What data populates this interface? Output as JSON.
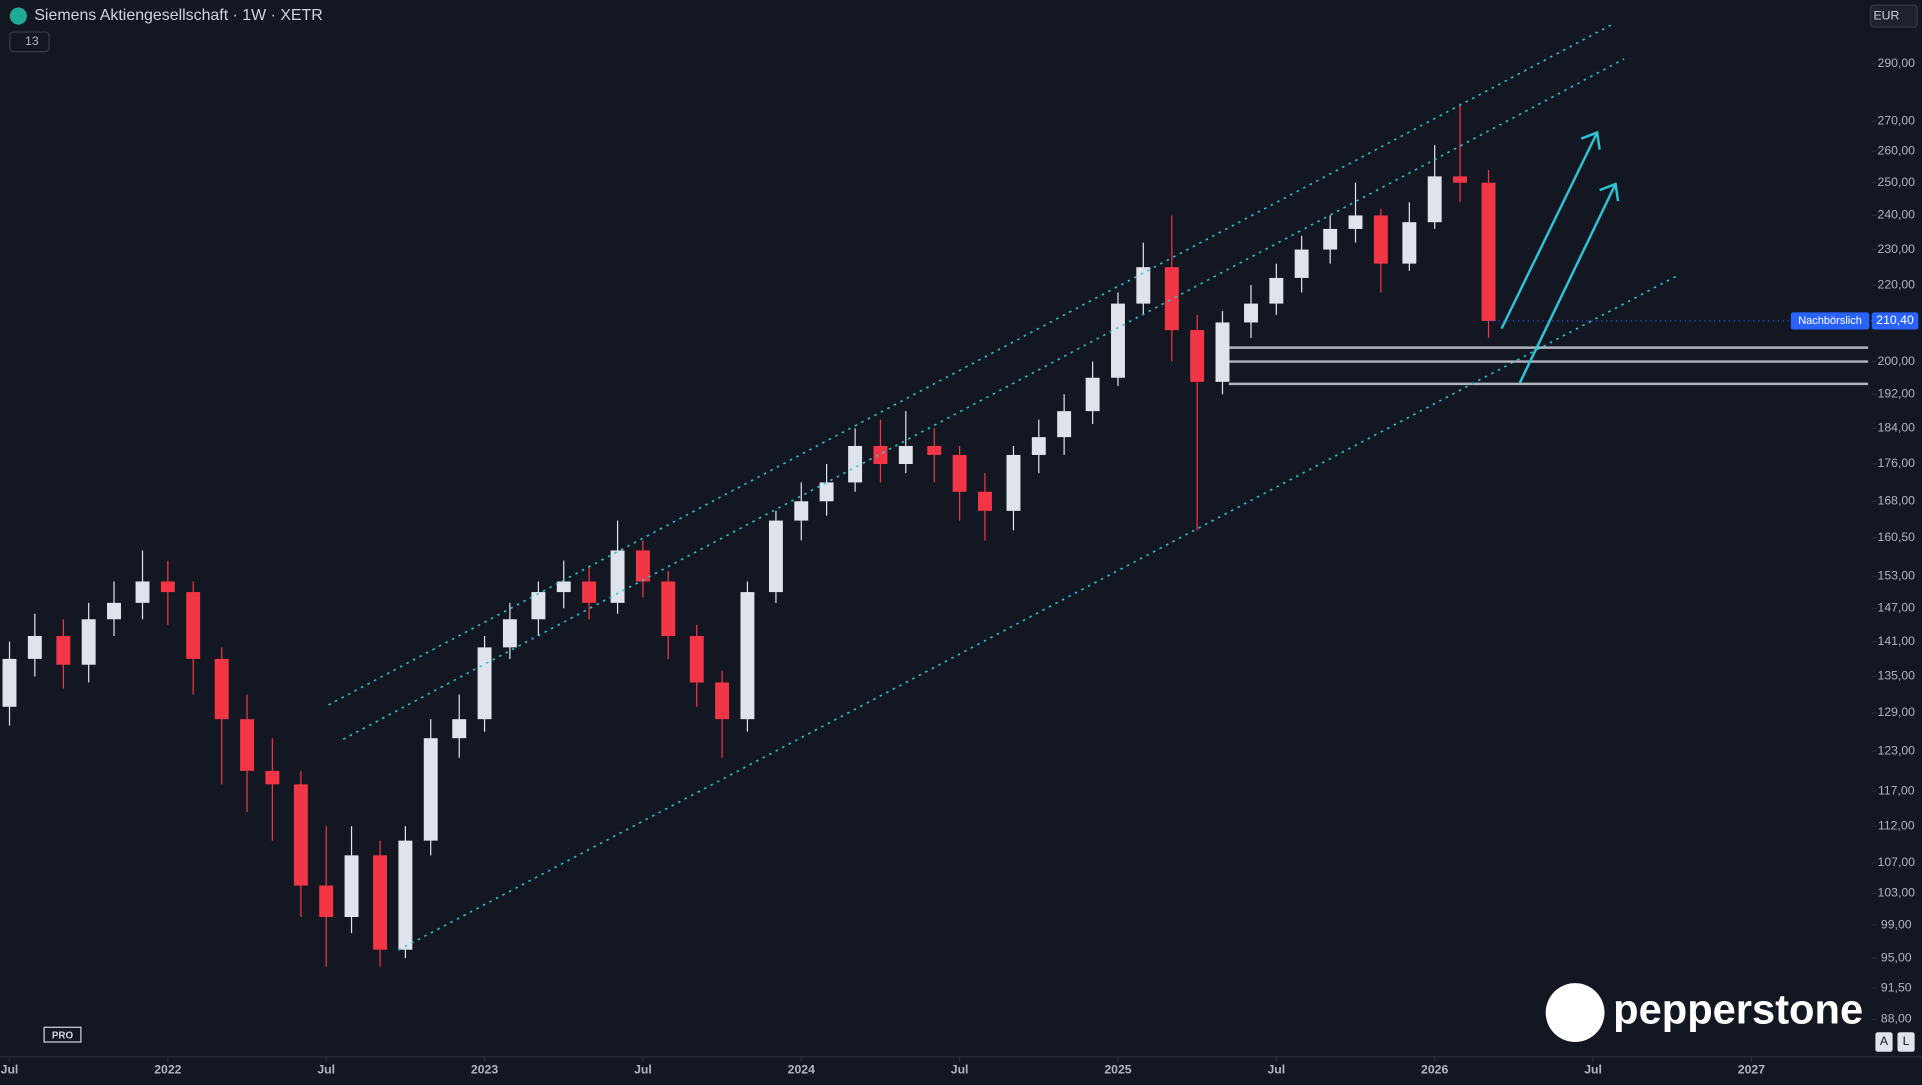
{
  "chart_data": {
    "type": "candlestick",
    "title": "Siemens Aktiengesellschaft · 1W · XETR",
    "indicator_count": "13",
    "currency": "EUR",
    "brand": "pepperstone",
    "badge": "PRO",
    "scale_buttons": [
      "A",
      "L"
    ],
    "log_scale": true,
    "up_color": "#e0e3eb",
    "down_color": "#f23645",
    "level_color": "#b2b5be",
    "xlim": [
      2021.47,
      2027.38
    ],
    "ylim": [
      84,
      314
    ],
    "xticks": [
      {
        "value": 2021.5,
        "label": "Jul"
      },
      2022,
      {
        "value": 2022.5,
        "label": "Jul"
      },
      2023,
      {
        "value": 2023.5,
        "label": "Jul"
      },
      2024,
      {
        "value": 2024.5,
        "label": "Jul"
      },
      2025,
      {
        "value": 2025.5,
        "label": "Jul"
      },
      2026,
      {
        "value": 2026.5,
        "label": "Jul"
      },
      2027
    ],
    "yticks": [
      {
        "value": 290,
        "label": "290,00"
      },
      {
        "value": 270,
        "label": "270,00"
      },
      {
        "value": 260,
        "label": "260,00"
      },
      {
        "value": 250,
        "label": "250,00"
      },
      {
        "value": 240,
        "label": "240,00"
      },
      {
        "value": 230,
        "label": "230,00"
      },
      {
        "value": 220,
        "label": "220,00"
      },
      {
        "value": 200,
        "label": "200,00"
      },
      {
        "value": 192,
        "label": "192,00"
      },
      {
        "value": 184,
        "label": "184,00"
      },
      {
        "value": 176,
        "label": "176,00"
      },
      {
        "value": 168,
        "label": "168,00"
      },
      {
        "value": 160.5,
        "label": "160,50"
      },
      {
        "value": 153,
        "label": "153,00"
      },
      {
        "value": 147,
        "label": "147,00"
      },
      {
        "value": 141,
        "label": "141,00"
      },
      {
        "value": 135,
        "label": "135,00"
      },
      {
        "value": 129,
        "label": "129,00"
      },
      {
        "value": 123,
        "label": "123,00"
      },
      {
        "value": 117,
        "label": "117,00"
      },
      {
        "value": 112,
        "label": "112,00"
      },
      {
        "value": 107,
        "label": "107,00"
      },
      {
        "value": 103,
        "label": "103,00"
      },
      {
        "value": 99,
        "label": "99,00"
      },
      {
        "value": 95,
        "label": "95,00"
      },
      {
        "value": 91.5,
        "label": "91,50"
      },
      {
        "value": 88,
        "label": "88,00"
      }
    ],
    "x": [
      2021.5,
      2021.58,
      2021.67,
      2021.75,
      2021.83,
      2021.92,
      2022.0,
      2022.08,
      2022.17,
      2022.25,
      2022.33,
      2022.42,
      2022.5,
      2022.58,
      2022.67,
      2022.75,
      2022.83,
      2022.92,
      2023.0,
      2023.08,
      2023.17,
      2023.25,
      2023.33,
      2023.42,
      2023.5,
      2023.58,
      2023.67,
      2023.75,
      2023.83,
      2023.92,
      2024.0,
      2024.08,
      2024.17,
      2024.25,
      2024.33,
      2024.42,
      2024.5,
      2024.58,
      2024.67,
      2024.75,
      2024.83,
      2024.92,
      2025.0,
      2025.08,
      2025.17,
      2025.25,
      2025.33,
      2025.42,
      2025.5,
      2025.58,
      2025.67,
      2025.75,
      2025.83,
      2025.92,
      2026.0,
      2026.08,
      2026.17
    ],
    "open": [
      130,
      138,
      142,
      137,
      145,
      148,
      152,
      150,
      138,
      128,
      120,
      118,
      104,
      100,
      108,
      96,
      110,
      125,
      128,
      140,
      145,
      150,
      152,
      148,
      158,
      152,
      142,
      134,
      128,
      150,
      164,
      168,
      172,
      180,
      176,
      180,
      178,
      170,
      166,
      178,
      182,
      188,
      196,
      215,
      225,
      208,
      195,
      210,
      215,
      222,
      230,
      236,
      240,
      226,
      238,
      252,
      250
    ],
    "high": [
      141,
      146,
      145,
      148,
      152,
      158,
      156,
      152,
      140,
      132,
      125,
      120,
      112,
      112,
      110,
      112,
      128,
      132,
      142,
      148,
      152,
      156,
      155,
      164,
      160,
      154,
      144,
      136,
      152,
      166,
      172,
      176,
      184,
      186,
      188,
      184,
      180,
      174,
      180,
      186,
      192,
      200,
      218,
      232,
      240,
      212,
      213,
      220,
      226,
      234,
      240,
      250,
      242,
      244,
      262,
      276,
      254
    ],
    "low": [
      127,
      135,
      133,
      134,
      142,
      145,
      144,
      132,
      118,
      114,
      110,
      100,
      94,
      98,
      94,
      95,
      108,
      122,
      126,
      138,
      142,
      147,
      145,
      146,
      149,
      138,
      130,
      122,
      126,
      148,
      160,
      165,
      170,
      172,
      174,
      172,
      164,
      160,
      162,
      174,
      178,
      185,
      194,
      212,
      200,
      162,
      192,
      206,
      212,
      218,
      226,
      232,
      218,
      224,
      236,
      244,
      206
    ],
    "close": [
      138,
      142,
      137,
      145,
      148,
      152,
      150,
      138,
      128,
      120,
      118,
      104,
      100,
      108,
      96,
      110,
      125,
      128,
      140,
      145,
      150,
      152,
      148,
      158,
      152,
      142,
      134,
      128,
      150,
      164,
      168,
      172,
      180,
      176,
      180,
      178,
      170,
      166,
      178,
      182,
      188,
      196,
      215,
      225,
      208,
      195,
      210,
      215,
      222,
      230,
      236,
      240,
      226,
      238,
      252,
      250,
      210.4
    ],
    "levels": [
      203.5,
      200,
      194.5
    ],
    "last_price": {
      "label": "Nachbörslich",
      "value": 210.4,
      "value_label": "210,40"
    }
  }
}
